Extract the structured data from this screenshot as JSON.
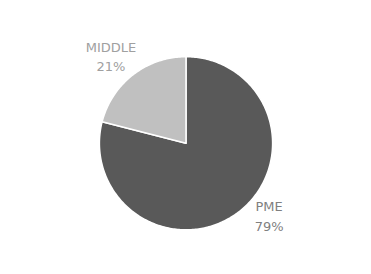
{
  "chart_data": {
    "type": "pie",
    "categories": [
      "PME",
      "MIDDLE"
    ],
    "values": [
      79,
      21
    ],
    "value_labels": [
      "79%",
      "21%"
    ],
    "colors": [
      "#595959",
      "#c0c0c0"
    ],
    "data_labels": true
  }
}
